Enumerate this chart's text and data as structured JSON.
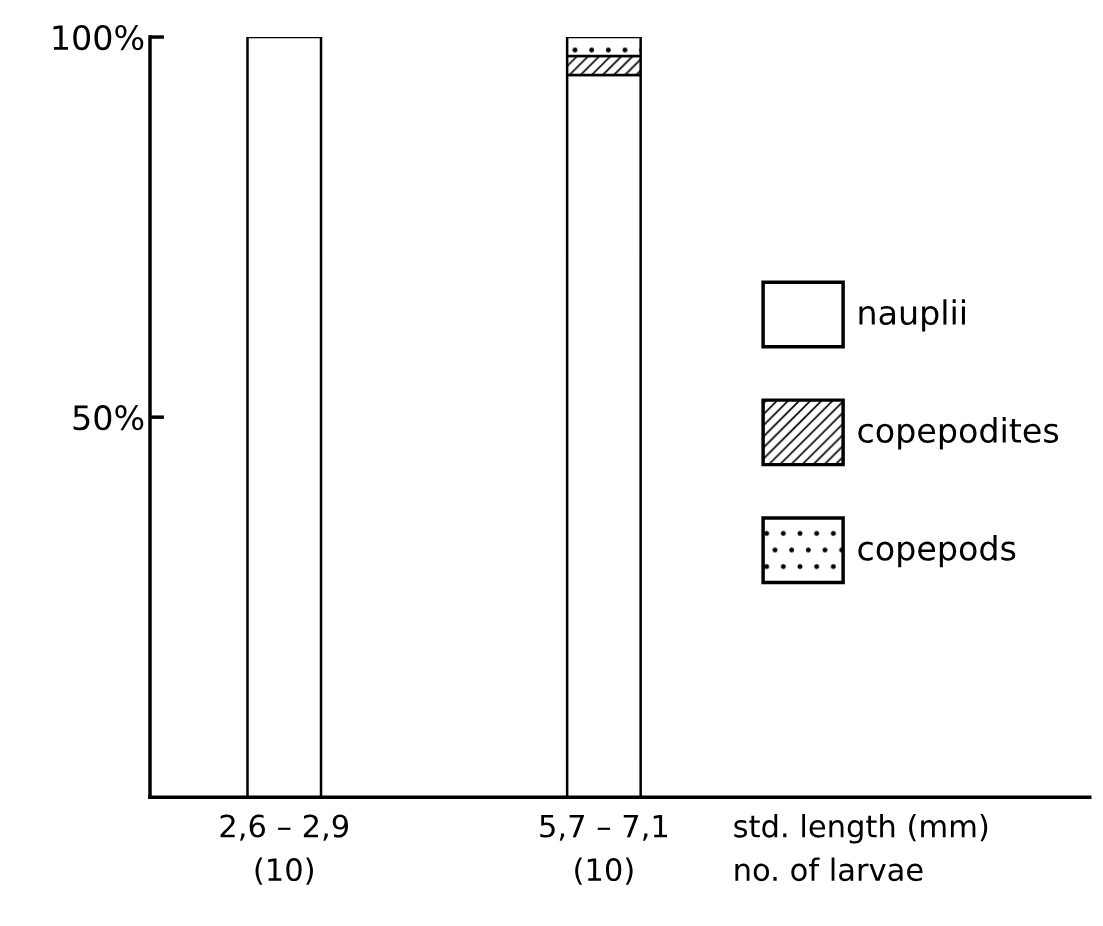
{
  "chart_data": {
    "type": "bar",
    "stacked": true,
    "categories": [
      "2,6 – 2,9\n(10)",
      "5,7 – 7,1\n(10)"
    ],
    "xlabel": "std. length (mm)\nno. of larvae",
    "series": [
      {
        "name": "nauplii",
        "color": "#ffffff",
        "values": [
          100,
          95
        ]
      },
      {
        "name": "copepodites",
        "color": "#000000",
        "values": [
          null,
          2.5
        ]
      },
      {
        "name": "copepods",
        "color": "#000000",
        "values": [
          null,
          2.5
        ]
      }
    ],
    "ylim": [
      0,
      100
    ],
    "yticks": [
      {
        "value": 50,
        "label": "50%"
      },
      {
        "value": 100,
        "label": "100%"
      }
    ],
    "legend": "right",
    "grid": false
  }
}
